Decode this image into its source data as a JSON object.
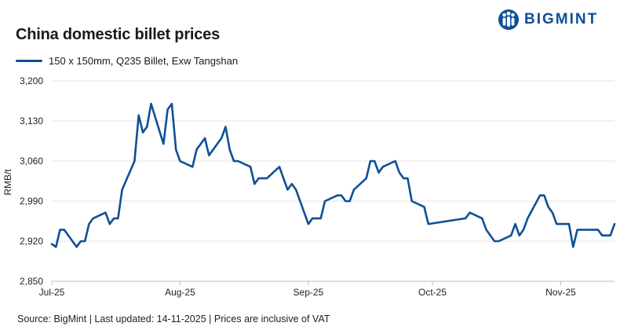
{
  "brand": {
    "name": "BIGMINT",
    "color": "#0f4f96"
  },
  "source_text": "Source: BigMint | Last updated: 14-11-2025 | Prices are inclusive of VAT",
  "chart_data": {
    "type": "line",
    "title": "China domestic billet prices",
    "ylabel": "RMB/t",
    "xlabel": "",
    "ylim": [
      2850,
      3200
    ],
    "yticks": [
      2850,
      2920,
      2990,
      3060,
      3130,
      3200
    ],
    "ytick_labels": [
      "2,850",
      "2,920",
      "2,990",
      "3,060",
      "3,130",
      "3,200"
    ],
    "xticks": [
      {
        "label": "Jul-25",
        "x": "2025-07-01"
      },
      {
        "label": "Aug-25",
        "x": "2025-08-01"
      },
      {
        "label": "Sep-25",
        "x": "2025-09-01"
      },
      {
        "label": "Oct-25",
        "x": "2025-10-01"
      },
      {
        "label": "Nov-25",
        "x": "2025-11-01"
      }
    ],
    "xlim": [
      "2025-07-01",
      "2025-11-14"
    ],
    "grid": "horizontal",
    "legend_position": "top-left",
    "series": [
      {
        "name": "150 x 150mm, Q235 Billet, Exw Tangshan",
        "color": "#0f4f96",
        "x": [
          "2025-07-01",
          "2025-07-02",
          "2025-07-03",
          "2025-07-04",
          "2025-07-07",
          "2025-07-08",
          "2025-07-09",
          "2025-07-10",
          "2025-07-11",
          "2025-07-14",
          "2025-07-15",
          "2025-07-16",
          "2025-07-17",
          "2025-07-18",
          "2025-07-21",
          "2025-07-22",
          "2025-07-23",
          "2025-07-24",
          "2025-07-25",
          "2025-07-28",
          "2025-07-29",
          "2025-07-30",
          "2025-07-31",
          "2025-08-01",
          "2025-08-04",
          "2025-08-05",
          "2025-08-06",
          "2025-08-07",
          "2025-08-08",
          "2025-08-11",
          "2025-08-12",
          "2025-08-13",
          "2025-08-14",
          "2025-08-15",
          "2025-08-18",
          "2025-08-19",
          "2025-08-20",
          "2025-08-21",
          "2025-08-22",
          "2025-08-25",
          "2025-08-26",
          "2025-08-27",
          "2025-08-28",
          "2025-08-29",
          "2025-09-01",
          "2025-09-02",
          "2025-09-03",
          "2025-09-04",
          "2025-09-05",
          "2025-09-08",
          "2025-09-09",
          "2025-09-10",
          "2025-09-11",
          "2025-09-12",
          "2025-09-15",
          "2025-09-16",
          "2025-09-17",
          "2025-09-18",
          "2025-09-19",
          "2025-09-22",
          "2025-09-23",
          "2025-09-24",
          "2025-09-25",
          "2025-09-26",
          "2025-09-29",
          "2025-09-30",
          "2025-10-09",
          "2025-10-10",
          "2025-10-13",
          "2025-10-14",
          "2025-10-15",
          "2025-10-16",
          "2025-10-17",
          "2025-10-20",
          "2025-10-21",
          "2025-10-22",
          "2025-10-23",
          "2025-10-24",
          "2025-10-27",
          "2025-10-28",
          "2025-10-29",
          "2025-10-30",
          "2025-10-31",
          "2025-11-03",
          "2025-11-04",
          "2025-11-05",
          "2025-11-06",
          "2025-11-07",
          "2025-11-10",
          "2025-11-11",
          "2025-11-12",
          "2025-11-13",
          "2025-11-14"
        ],
        "values": [
          2915,
          2910,
          2940,
          2940,
          2910,
          2920,
          2920,
          2950,
          2960,
          2970,
          2950,
          2960,
          2960,
          3010,
          3060,
          3140,
          3110,
          3120,
          3160,
          3090,
          3150,
          3160,
          3080,
          3060,
          3050,
          3080,
          3090,
          3100,
          3070,
          3100,
          3120,
          3080,
          3060,
          3060,
          3050,
          3020,
          3030,
          3030,
          3030,
          3050,
          3030,
          3010,
          3020,
          3010,
          2950,
          2960,
          2960,
          2960,
          2990,
          3000,
          3000,
          2990,
          2990,
          3010,
          3030,
          3060,
          3060,
          3040,
          3050,
          3060,
          3040,
          3030,
          3030,
          2990,
          2980,
          2950,
          2960,
          2970,
          2960,
          2940,
          2930,
          2920,
          2920,
          2930,
          2950,
          2930,
          2940,
          2960,
          3000,
          3000,
          2980,
          2970,
          2950,
          2950,
          2910,
          2940,
          2940,
          2940,
          2940,
          2930,
          2930,
          2930,
          2950
        ]
      }
    ]
  }
}
